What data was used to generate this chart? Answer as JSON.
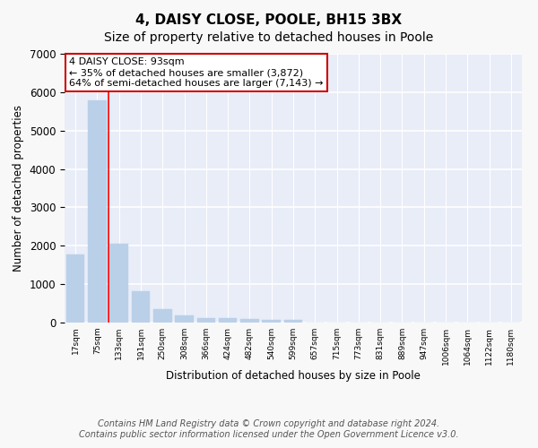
{
  "title": "4, DAISY CLOSE, POOLE, BH15 3BX",
  "subtitle": "Size of property relative to detached houses in Poole",
  "xlabel": "Distribution of detached houses by size in Poole",
  "ylabel": "Number of detached properties",
  "footnote1": "Contains HM Land Registry data © Crown copyright and database right 2024.",
  "footnote2": "Contains public sector information licensed under the Open Government Licence v3.0.",
  "bar_labels": [
    "17sqm",
    "75sqm",
    "133sqm",
    "191sqm",
    "250sqm",
    "308sqm",
    "366sqm",
    "424sqm",
    "482sqm",
    "540sqm",
    "599sqm",
    "657sqm",
    "715sqm",
    "773sqm",
    "831sqm",
    "889sqm",
    "947sqm",
    "1006sqm",
    "1064sqm",
    "1122sqm",
    "1180sqm"
  ],
  "bar_values": [
    1780,
    5780,
    2060,
    820,
    340,
    185,
    115,
    110,
    100,
    75,
    70,
    0,
    0,
    0,
    0,
    0,
    0,
    0,
    0,
    0,
    0
  ],
  "bar_color": "#bad0e8",
  "red_line_x": 1.5,
  "annotation_line1": "4 DAISY CLOSE: 93sqm",
  "annotation_line2": "← 35% of detached houses are smaller (3,872)",
  "annotation_line3": "64% of semi-detached houses are larger (7,143) →",
  "annotation_border_color": "#cc0000",
  "ylim": [
    0,
    7000
  ],
  "yticks": [
    0,
    1000,
    2000,
    3000,
    4000,
    5000,
    6000,
    7000
  ],
  "fig_bg": "#f8f8f8",
  "ax_bg": "#e8edf8",
  "grid_color": "#ffffff",
  "title_fontsize": 11,
  "subtitle_fontsize": 10,
  "footnote_fontsize": 7
}
